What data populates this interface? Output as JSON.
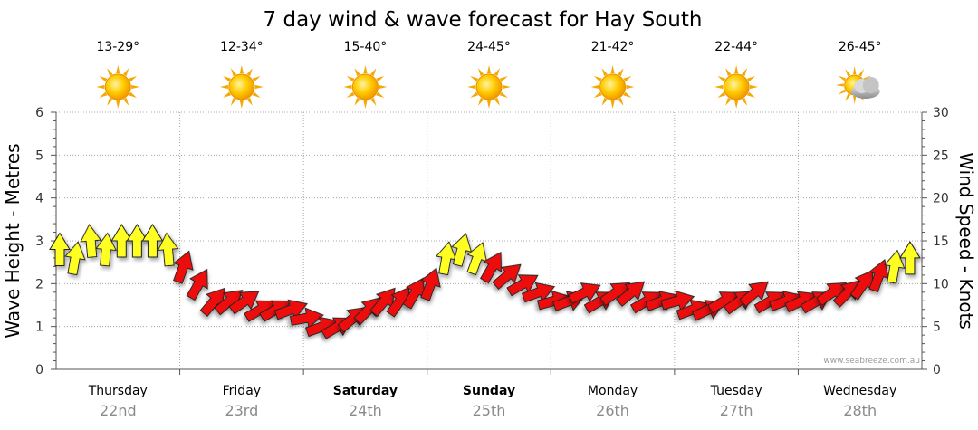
{
  "title": "7 day wind & wave forecast for Hay South",
  "credit": "www.seabreeze.com.au",
  "colors": {
    "wave_area": "#1f5fa8",
    "arrow_red": "#ee1111",
    "arrow_yellow": "#ffff22",
    "grid": "#b0b0b0"
  },
  "days": [
    {
      "name": "Thursday",
      "date": "22nd",
      "temp": "13-29°",
      "icon": "sun-icon",
      "bold": false
    },
    {
      "name": "Friday",
      "date": "23rd",
      "temp": "12-34°",
      "icon": "sun-icon",
      "bold": false
    },
    {
      "name": "Saturday",
      "date": "24th",
      "temp": "15-40°",
      "icon": "sun-icon",
      "bold": true
    },
    {
      "name": "Sunday",
      "date": "25th",
      "temp": "24-45°",
      "icon": "sun-icon",
      "bold": true
    },
    {
      "name": "Monday",
      "date": "26th",
      "temp": "21-42°",
      "icon": "sun-icon",
      "bold": false
    },
    {
      "name": "Tuesday",
      "date": "27th",
      "temp": "22-44°",
      "icon": "sun-icon",
      "bold": false
    },
    {
      "name": "Wednesday",
      "date": "28th",
      "temp": "26-45°",
      "icon": "sun-cloud-icon",
      "bold": false
    }
  ],
  "chart_data": {
    "type": "line",
    "title": "7 day wind & wave forecast for Hay South",
    "ylabel_left": "Wave Height - Metres",
    "ylabel_right": "Wind Speed - Knots",
    "ylim_left": [
      0,
      6
    ],
    "ylim_right": [
      0,
      30
    ],
    "yticks_left": [
      "0",
      "1",
      "2",
      "3",
      "4",
      "5",
      "6"
    ],
    "yticks_right": [
      "0",
      "5",
      "10",
      "15",
      "20",
      "25",
      "30"
    ],
    "grid": true,
    "x_range_days": [
      0,
      7
    ],
    "series": [
      {
        "name": "Wave Height",
        "values": []
      },
      {
        "name": "Wind Speed",
        "x_days": [
          0.0,
          0.125,
          0.25,
          0.375,
          0.5,
          0.625,
          0.75,
          0.875,
          1.0,
          1.125,
          1.25,
          1.375,
          1.5,
          1.625,
          1.75,
          1.875,
          2.0,
          2.125,
          2.25,
          2.375,
          2.5,
          2.625,
          2.75,
          2.875,
          3.0,
          3.125,
          3.25,
          3.375,
          3.5,
          3.625,
          3.75,
          3.875,
          4.0,
          4.125,
          4.25,
          4.375,
          4.5,
          4.625,
          4.75,
          4.875,
          5.0,
          5.125,
          5.25,
          5.375,
          5.5,
          5.625,
          5.75,
          5.875,
          6.0,
          6.125,
          6.25,
          6.375,
          6.5,
          6.625,
          6.75,
          6.875
        ],
        "values": [
          14,
          13,
          15,
          14,
          15,
          15,
          15,
          14,
          12,
          10,
          8,
          8,
          8,
          7,
          7,
          7,
          6,
          5,
          5,
          6,
          7,
          8,
          8,
          9,
          10,
          13,
          14,
          13,
          12,
          11,
          10,
          9,
          8,
          8,
          9,
          8,
          9,
          9,
          8,
          8,
          8,
          7,
          7,
          8,
          8,
          9,
          8,
          8,
          8,
          8,
          9,
          9,
          10,
          11,
          12,
          13
        ],
        "direction_deg": [
          180,
          190,
          175,
          185,
          180,
          180,
          180,
          175,
          200,
          210,
          220,
          230,
          235,
          240,
          240,
          250,
          260,
          250,
          240,
          230,
          225,
          220,
          215,
          210,
          200,
          190,
          195,
          200,
          210,
          230,
          240,
          250,
          255,
          250,
          245,
          240,
          235,
          230,
          240,
          250,
          255,
          250,
          245,
          240,
          235,
          230,
          240,
          250,
          245,
          240,
          235,
          225,
          215,
          200,
          190,
          180
        ],
        "speed_color": [
          "yellow",
          "yellow",
          "yellow",
          "yellow",
          "yellow",
          "yellow",
          "yellow",
          "yellow",
          "red",
          "red",
          "red",
          "red",
          "red",
          "red",
          "red",
          "red",
          "red",
          "red",
          "red",
          "red",
          "red",
          "red",
          "red",
          "red",
          "red",
          "yellow",
          "yellow",
          "yellow",
          "red",
          "red",
          "red",
          "red",
          "red",
          "red",
          "red",
          "red",
          "red",
          "red",
          "red",
          "red",
          "red",
          "red",
          "red",
          "red",
          "red",
          "red",
          "red",
          "red",
          "red",
          "red",
          "red",
          "red",
          "red",
          "red",
          "yellow",
          "yellow"
        ]
      }
    ]
  }
}
